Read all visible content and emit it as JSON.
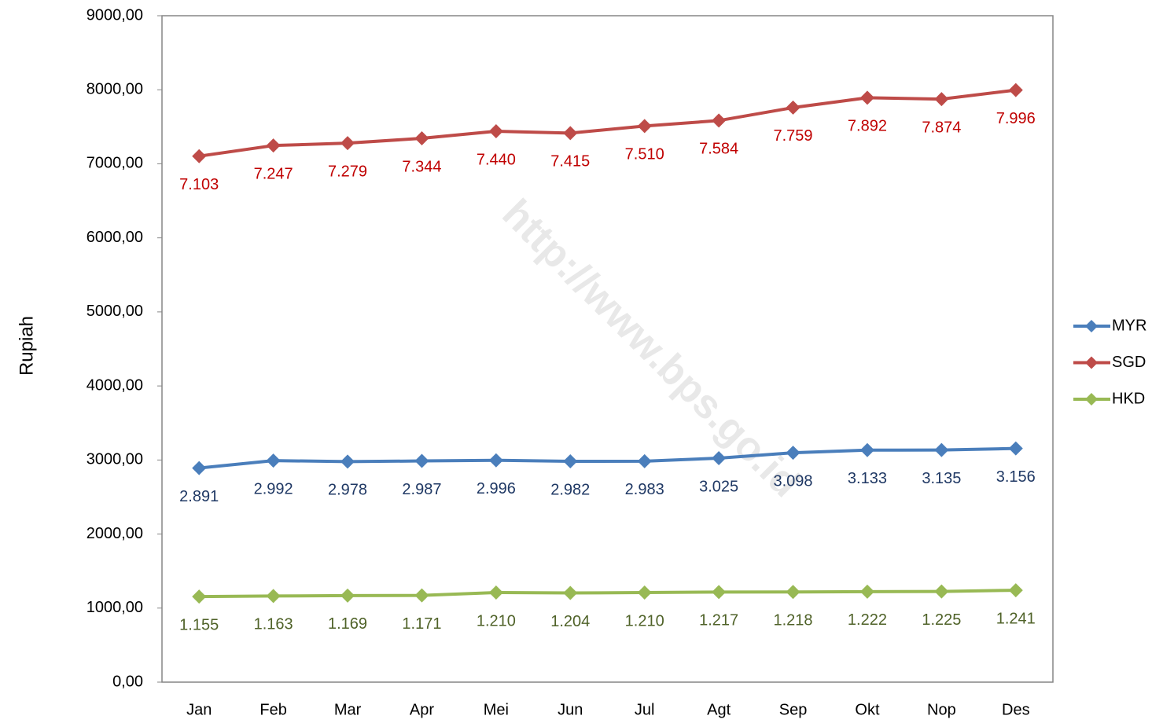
{
  "chart_data": {
    "type": "line",
    "y_label": "Rupiah",
    "watermark": "http://www.bps.go.id",
    "categories": [
      "Jan",
      "Feb",
      "Mar",
      "Apr",
      "Mei",
      "Jun",
      "Jul",
      "Agt",
      "Sep",
      "Okt",
      "Nop",
      "Des"
    ],
    "series": [
      {
        "name": "MYR",
        "color": "#4a7ebb",
        "label_color": "#1f3864",
        "values": [
          2891,
          2992,
          2978,
          2987,
          2996,
          2982,
          2983,
          3025,
          3098,
          3133,
          3135,
          3156
        ],
        "value_labels": [
          "2.891",
          "2.992",
          "2.978",
          "2.987",
          "2.996",
          "2.982",
          "2.983",
          "3.025",
          "3.098",
          "3.133",
          "3.135",
          "3.156"
        ]
      },
      {
        "name": "SGD",
        "color": "#be4b48",
        "label_color": "#c00000",
        "values": [
          7103,
          7247,
          7279,
          7344,
          7440,
          7415,
          7510,
          7584,
          7759,
          7892,
          7874,
          7996
        ],
        "value_labels": [
          "7.103",
          "7.247",
          "7.279",
          "7.344",
          "7.440",
          "7.415",
          "7.510",
          "7.584",
          "7.759",
          "7.892",
          "7.874",
          "7.996"
        ]
      },
      {
        "name": "HKD",
        "color": "#98b954",
        "label_color": "#4f6228",
        "values": [
          1155,
          1163,
          1169,
          1171,
          1210,
          1204,
          1210,
          1217,
          1218,
          1222,
          1225,
          1241
        ],
        "value_labels": [
          "1.155",
          "1.163",
          "1.169",
          "1.171",
          "1.210",
          "1.204",
          "1.210",
          "1.217",
          "1.218",
          "1.222",
          "1.225",
          "1.241"
        ]
      }
    ],
    "ylim": [
      0,
      9000
    ],
    "yticks": [
      {
        "value": 0,
        "label": "0,00"
      },
      {
        "value": 1000,
        "label": "1000,00"
      },
      {
        "value": 2000,
        "label": "2000,00"
      },
      {
        "value": 3000,
        "label": "3000,00"
      },
      {
        "value": 4000,
        "label": "4000,00"
      },
      {
        "value": 5000,
        "label": "5000,00"
      },
      {
        "value": 6000,
        "label": "6000,00"
      },
      {
        "value": 7000,
        "label": "7000,00"
      },
      {
        "value": 8000,
        "label": "8000,00"
      },
      {
        "value": 9000,
        "label": "9000,00"
      }
    ],
    "grid": false,
    "legend": "right"
  }
}
